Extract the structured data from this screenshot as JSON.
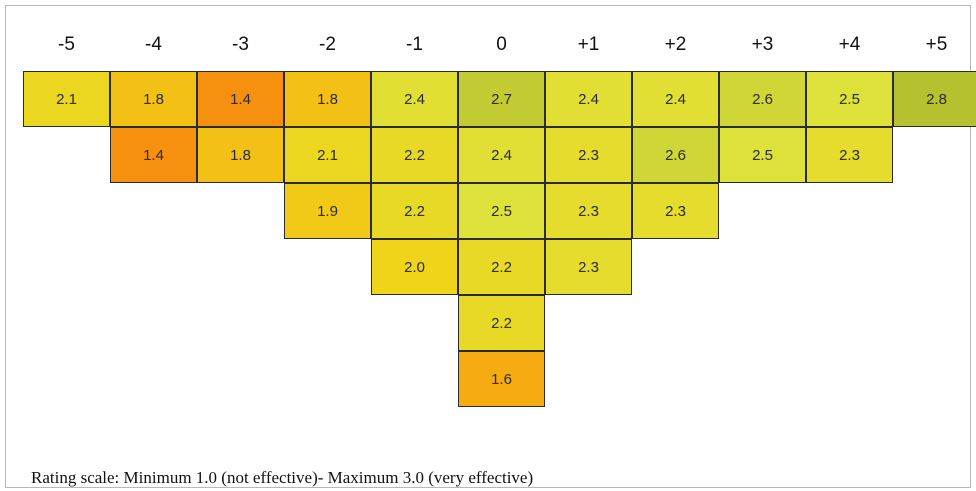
{
  "chart_data": {
    "type": "heatmap",
    "columns": [
      "-5",
      "-4",
      "-3",
      "-2",
      "-1",
      "0",
      "+1",
      "+2",
      "+3",
      "+4",
      "+5"
    ],
    "rows": [
      [
        2.1,
        1.8,
        1.4,
        1.8,
        2.4,
        2.7,
        2.4,
        2.4,
        2.6,
        2.5,
        2.8
      ],
      [
        null,
        1.4,
        1.8,
        2.1,
        2.2,
        2.4,
        2.3,
        2.6,
        2.5,
        2.3,
        null
      ],
      [
        null,
        null,
        null,
        1.9,
        2.2,
        2.5,
        2.3,
        2.3,
        null,
        null,
        null
      ],
      [
        null,
        null,
        null,
        null,
        2.0,
        2.2,
        2.3,
        null,
        null,
        null,
        null
      ],
      [
        null,
        null,
        null,
        null,
        null,
        2.2,
        null,
        null,
        null,
        null,
        null
      ],
      [
        null,
        null,
        null,
        null,
        null,
        1.6,
        null,
        null,
        null,
        null,
        null
      ]
    ],
    "value_range": [
      1.0,
      3.0
    ],
    "colorscale": [
      "#ee4b0f",
      "#f7a20e",
      "#f0d41a",
      "#dde13a",
      "#9aac26"
    ]
  },
  "caption": "Rating scale: Minimum 1.0 (not effective)- Maximum 3.0 (very effective)"
}
